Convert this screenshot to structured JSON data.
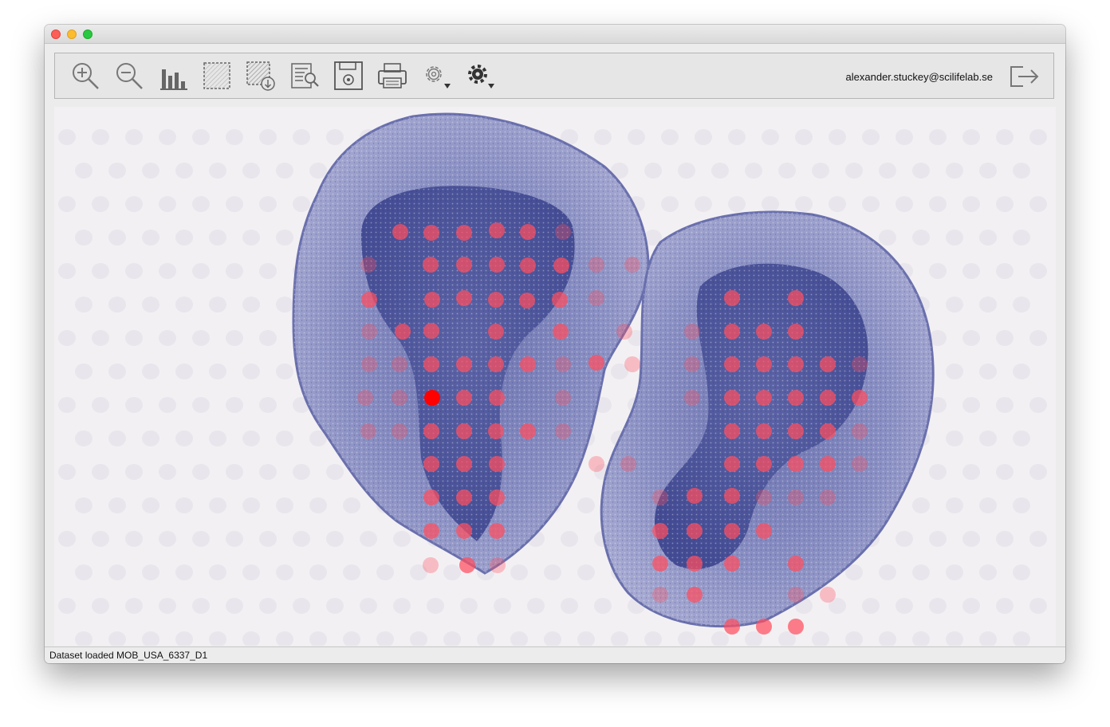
{
  "window": {
    "controls": [
      "close",
      "minimize",
      "maximize"
    ]
  },
  "toolbar": {
    "tools": [
      {
        "name": "zoom-in-icon"
      },
      {
        "name": "zoom-out-icon"
      },
      {
        "name": "bar-chart-icon"
      },
      {
        "name": "selection-icon"
      },
      {
        "name": "selection-export-icon"
      },
      {
        "name": "search-list-icon"
      },
      {
        "name": "save-image-icon"
      },
      {
        "name": "print-icon"
      },
      {
        "name": "settings-outline-icon"
      },
      {
        "name": "settings-solid-icon"
      }
    ],
    "user_email": "alexander.stuckey@scilifelab.se",
    "logout_icon": "logout-icon"
  },
  "viewer": {
    "spot_color": "#ff4d5e",
    "highlight_color": "#ff0000",
    "tissue_color": "#8e94c4"
  },
  "status": {
    "text": "Dataset loaded MOB_USA_6337_D1"
  }
}
